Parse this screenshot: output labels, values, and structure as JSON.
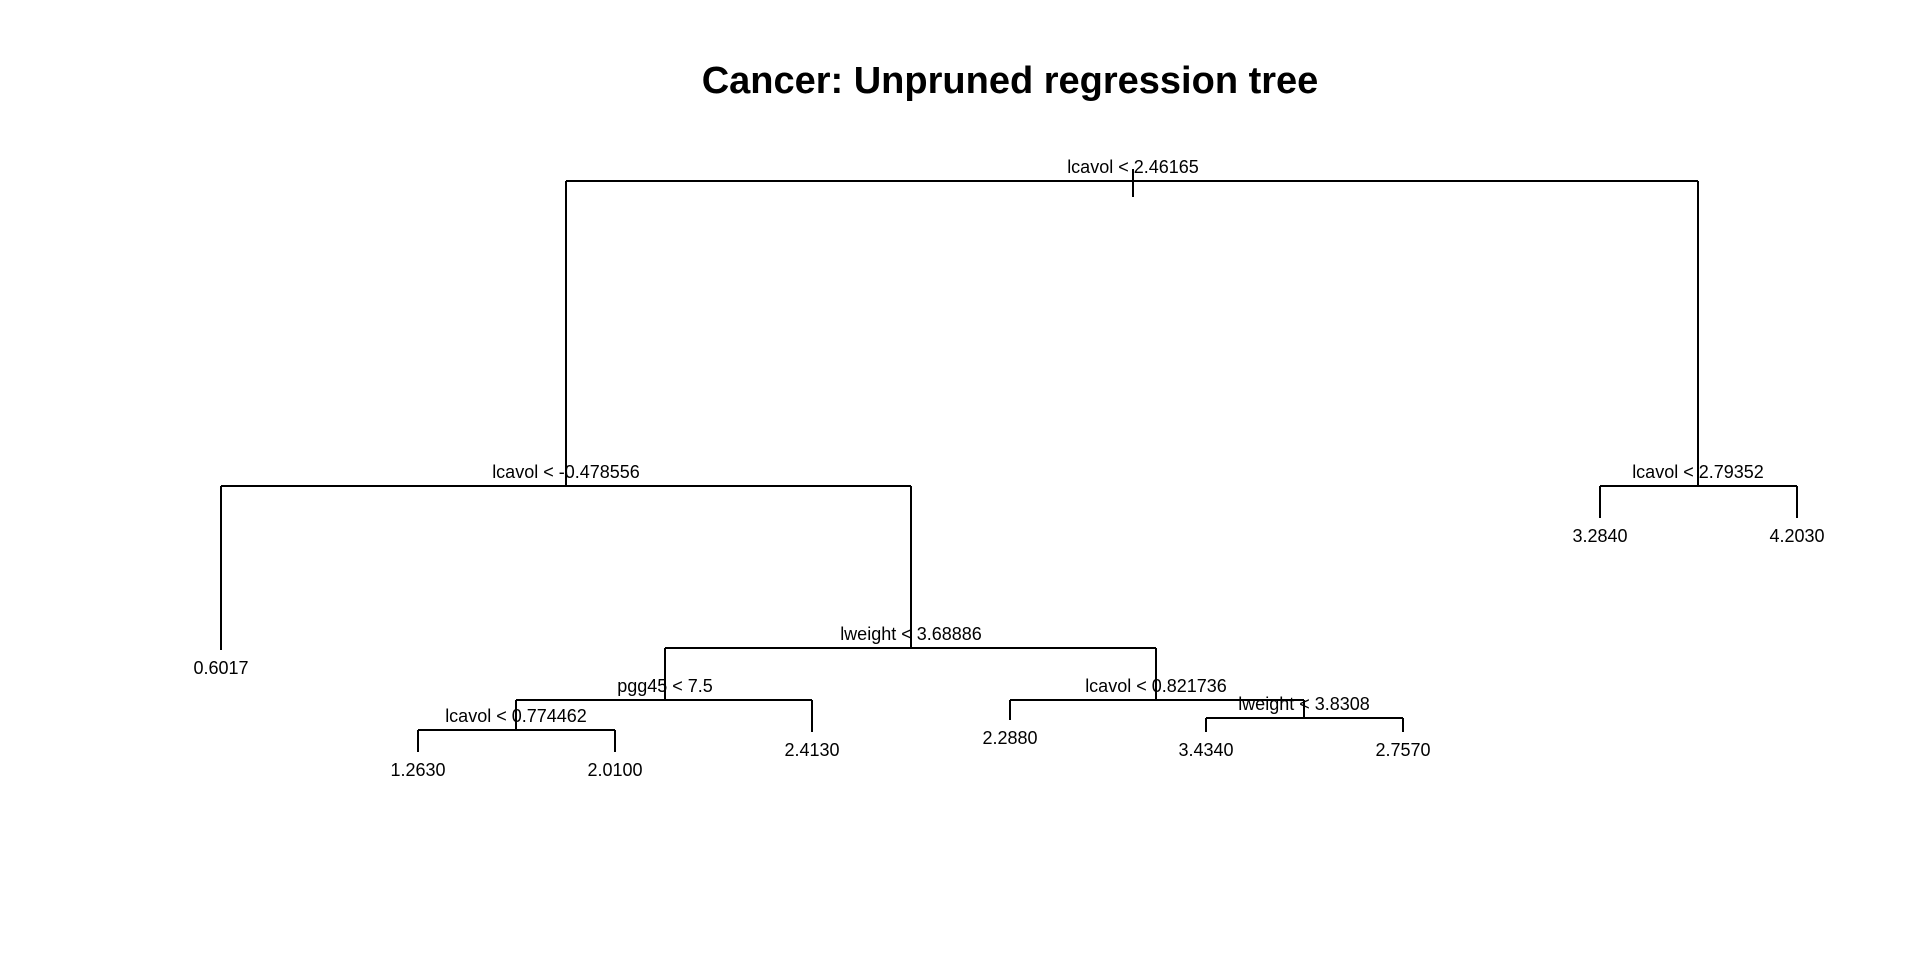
{
  "title": "Cancer: Unpruned regression tree",
  "line_color": "#000000",
  "background": "#ffffff",
  "tree": {
    "id": "root",
    "split": "lcavol < 2.46165",
    "children": [
      {
        "id": "n2",
        "split": "lcavol < -0.478556",
        "children": [
          {
            "id": "leaf-0-6017",
            "leaf": "0.6017"
          },
          {
            "id": "n5",
            "split": "lweight < 3.68886",
            "children": [
              {
                "id": "n10",
                "split": "pgg45 < 7.5",
                "children": [
                  {
                    "id": "n20",
                    "split": "lcavol < 0.774462",
                    "children": [
                      {
                        "id": "leaf-1-2630",
                        "leaf": "1.2630"
                      },
                      {
                        "id": "leaf-2-0100",
                        "leaf": "2.0100"
                      }
                    ]
                  },
                  {
                    "id": "leaf-2-4130",
                    "leaf": "2.4130"
                  }
                ]
              },
              {
                "id": "n11",
                "split": "lcavol < 0.821736",
                "children": [
                  {
                    "id": "leaf-2-2880",
                    "leaf": "2.2880"
                  },
                  {
                    "id": "n23",
                    "split": "lweight < 3.8308",
                    "children": [
                      {
                        "id": "leaf-3-4340",
                        "leaf": "3.4340"
                      },
                      {
                        "id": "leaf-2-7570",
                        "leaf": "2.7570"
                      }
                    ]
                  }
                ]
              }
            ]
          }
        ]
      },
      {
        "id": "n3",
        "split": "lcavol < 2.79352",
        "children": [
          {
            "id": "leaf-3-2840",
            "leaf": "3.2840"
          },
          {
            "id": "leaf-4-2030",
            "leaf": "4.2030"
          }
        ]
      }
    ]
  }
}
